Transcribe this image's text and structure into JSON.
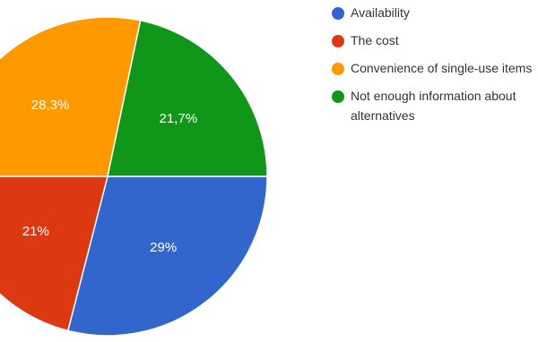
{
  "chart_data": {
    "type": "pie",
    "title": "",
    "legend_position": "right",
    "slices": [
      {
        "label": "Availability",
        "value": 29,
        "display": "29%",
        "color": "#3366cc"
      },
      {
        "label": "The cost",
        "value": 21,
        "display": "21%",
        "color": "#dc3912"
      },
      {
        "label": "Convenience of single-use items",
        "value": 28.3,
        "display": "28,3%",
        "color": "#ff9900"
      },
      {
        "label": "Not enough information about alternatives",
        "value": 21.7,
        "display": "21,7%",
        "color": "#109618"
      }
    ]
  }
}
